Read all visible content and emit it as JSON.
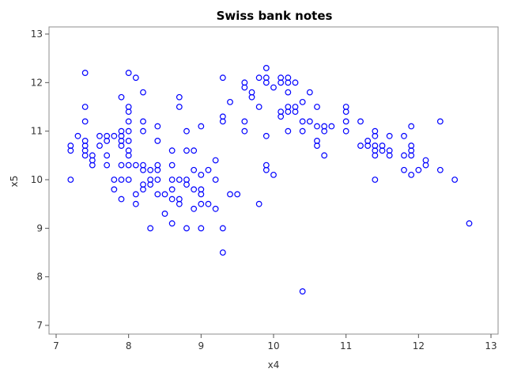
{
  "chart_data": {
    "type": "scatter",
    "title": "Swiss bank notes",
    "xlabel": "x4",
    "ylabel": "x5",
    "xlim": [
      7,
      13
    ],
    "ylim": [
      7,
      13
    ],
    "xticks": [
      7,
      8,
      9,
      10,
      11,
      12,
      13
    ],
    "yticks": [
      7,
      8,
      9,
      10,
      11,
      12,
      13
    ],
    "grid": false,
    "marker_color": "#0000ff",
    "frame_color": "#8c8c8c",
    "points": [
      [
        7.2,
        10.7
      ],
      [
        7.2,
        10.6
      ],
      [
        7.2,
        10.0
      ],
      [
        7.3,
        10.9
      ],
      [
        7.4,
        12.2
      ],
      [
        7.4,
        11.5
      ],
      [
        7.4,
        11.2
      ],
      [
        7.4,
        10.8
      ],
      [
        7.4,
        10.7
      ],
      [
        7.4,
        10.6
      ],
      [
        7.4,
        10.5
      ],
      [
        7.5,
        10.5
      ],
      [
        7.5,
        10.4
      ],
      [
        7.5,
        10.3
      ],
      [
        7.6,
        10.9
      ],
      [
        7.6,
        10.7
      ],
      [
        7.7,
        10.9
      ],
      [
        7.7,
        10.8
      ],
      [
        7.7,
        10.5
      ],
      [
        7.7,
        10.3
      ],
      [
        7.8,
        10.9
      ],
      [
        7.8,
        10.0
      ],
      [
        7.8,
        9.8
      ],
      [
        7.9,
        11.7
      ],
      [
        7.9,
        11.0
      ],
      [
        7.9,
        10.9
      ],
      [
        7.9,
        10.8
      ],
      [
        7.9,
        10.7
      ],
      [
        7.9,
        10.3
      ],
      [
        7.9,
        10.0
      ],
      [
        7.9,
        9.6
      ],
      [
        8.0,
        12.2
      ],
      [
        8.0,
        11.5
      ],
      [
        8.0,
        11.4
      ],
      [
        8.0,
        11.2
      ],
      [
        8.0,
        11.0
      ],
      [
        8.0,
        10.8
      ],
      [
        8.0,
        10.6
      ],
      [
        8.0,
        10.5
      ],
      [
        8.0,
        10.3
      ],
      [
        8.0,
        10.0
      ],
      [
        8.1,
        12.1
      ],
      [
        8.1,
        10.3
      ],
      [
        8.1,
        9.7
      ],
      [
        8.1,
        9.5
      ],
      [
        8.2,
        11.8
      ],
      [
        8.2,
        11.2
      ],
      [
        8.2,
        11.0
      ],
      [
        8.2,
        10.3
      ],
      [
        8.2,
        10.2
      ],
      [
        8.2,
        9.9
      ],
      [
        8.2,
        9.8
      ],
      [
        8.3,
        10.2
      ],
      [
        8.3,
        10.0
      ],
      [
        8.3,
        9.9
      ],
      [
        8.3,
        9.0
      ],
      [
        8.4,
        11.1
      ],
      [
        8.4,
        10.8
      ],
      [
        8.4,
        10.3
      ],
      [
        8.4,
        10.2
      ],
      [
        8.4,
        10.0
      ],
      [
        8.4,
        9.7
      ],
      [
        8.5,
        9.7
      ],
      [
        8.5,
        9.3
      ],
      [
        8.6,
        10.6
      ],
      [
        8.6,
        10.3
      ],
      [
        8.6,
        10.0
      ],
      [
        8.6,
        9.8
      ],
      [
        8.6,
        9.6
      ],
      [
        8.6,
        9.1
      ],
      [
        8.7,
        11.7
      ],
      [
        8.7,
        11.5
      ],
      [
        8.7,
        10.0
      ],
      [
        8.7,
        9.6
      ],
      [
        8.7,
        9.5
      ],
      [
        8.8,
        11.0
      ],
      [
        8.8,
        10.6
      ],
      [
        8.8,
        10.0
      ],
      [
        8.8,
        9.9
      ],
      [
        8.8,
        9.0
      ],
      [
        8.9,
        10.6
      ],
      [
        8.9,
        10.2
      ],
      [
        8.9,
        9.8
      ],
      [
        8.9,
        9.4
      ],
      [
        9.0,
        11.1
      ],
      [
        9.0,
        10.1
      ],
      [
        9.0,
        9.8
      ],
      [
        9.0,
        9.7
      ],
      [
        9.0,
        9.5
      ],
      [
        9.0,
        9.0
      ],
      [
        9.1,
        10.2
      ],
      [
        9.1,
        9.5
      ],
      [
        9.2,
        10.4
      ],
      [
        9.2,
        10.0
      ],
      [
        9.2,
        9.4
      ],
      [
        9.3,
        12.1
      ],
      [
        9.3,
        11.3
      ],
      [
        9.3,
        11.2
      ],
      [
        9.3,
        9.0
      ],
      [
        9.3,
        8.5
      ],
      [
        9.4,
        11.6
      ],
      [
        9.4,
        9.7
      ],
      [
        9.5,
        9.7
      ],
      [
        9.6,
        12.0
      ],
      [
        9.6,
        11.9
      ],
      [
        9.6,
        11.2
      ],
      [
        9.6,
        11.0
      ],
      [
        9.7,
        11.8
      ],
      [
        9.7,
        11.7
      ],
      [
        9.8,
        12.1
      ],
      [
        9.8,
        11.5
      ],
      [
        9.8,
        9.5
      ],
      [
        9.9,
        12.3
      ],
      [
        9.9,
        12.1
      ],
      [
        9.9,
        12.0
      ],
      [
        9.9,
        10.9
      ],
      [
        9.9,
        10.3
      ],
      [
        9.9,
        10.2
      ],
      [
        10.0,
        11.9
      ],
      [
        10.0,
        10.1
      ],
      [
        10.1,
        12.1
      ],
      [
        10.1,
        12.0
      ],
      [
        10.1,
        11.4
      ],
      [
        10.1,
        11.3
      ],
      [
        10.2,
        12.1
      ],
      [
        10.2,
        12.0
      ],
      [
        10.2,
        11.8
      ],
      [
        10.2,
        11.5
      ],
      [
        10.2,
        11.4
      ],
      [
        10.2,
        11.0
      ],
      [
        10.3,
        12.0
      ],
      [
        10.3,
        11.5
      ],
      [
        10.3,
        11.4
      ],
      [
        10.4,
        11.6
      ],
      [
        10.4,
        11.2
      ],
      [
        10.4,
        11.0
      ],
      [
        10.4,
        7.7
      ],
      [
        10.5,
        11.8
      ],
      [
        10.5,
        11.2
      ],
      [
        10.6,
        11.5
      ],
      [
        10.6,
        11.1
      ],
      [
        10.6,
        10.8
      ],
      [
        10.6,
        10.7
      ],
      [
        10.7,
        11.1
      ],
      [
        10.7,
        11.0
      ],
      [
        10.7,
        10.5
      ],
      [
        10.8,
        11.1
      ],
      [
        11.0,
        11.5
      ],
      [
        11.0,
        11.4
      ],
      [
        11.0,
        11.2
      ],
      [
        11.0,
        11.0
      ],
      [
        11.2,
        11.2
      ],
      [
        11.2,
        10.7
      ],
      [
        11.3,
        10.8
      ],
      [
        11.3,
        10.7
      ],
      [
        11.4,
        11.0
      ],
      [
        11.4,
        10.9
      ],
      [
        11.4,
        10.7
      ],
      [
        11.4,
        10.6
      ],
      [
        11.4,
        10.5
      ],
      [
        11.4,
        10.0
      ],
      [
        11.5,
        10.7
      ],
      [
        11.5,
        10.6
      ],
      [
        11.6,
        10.9
      ],
      [
        11.6,
        10.6
      ],
      [
        11.6,
        10.5
      ],
      [
        11.8,
        10.9
      ],
      [
        11.8,
        10.5
      ],
      [
        11.8,
        10.2
      ],
      [
        11.9,
        11.1
      ],
      [
        11.9,
        10.7
      ],
      [
        11.9,
        10.6
      ],
      [
        11.9,
        10.5
      ],
      [
        11.9,
        10.1
      ],
      [
        12.0,
        10.2
      ],
      [
        12.1,
        10.4
      ],
      [
        12.1,
        10.3
      ],
      [
        12.3,
        11.2
      ],
      [
        12.3,
        10.2
      ],
      [
        12.5,
        10.0
      ],
      [
        12.7,
        9.1
      ]
    ]
  }
}
